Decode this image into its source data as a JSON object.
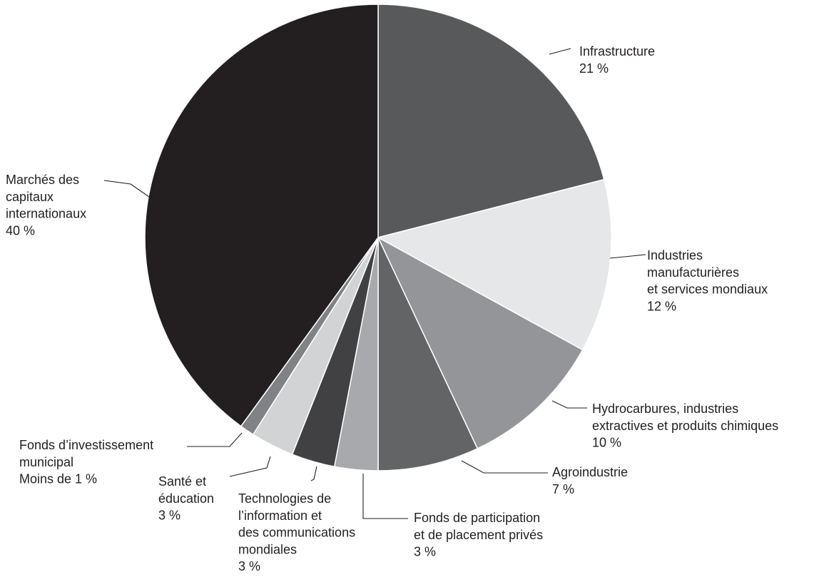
{
  "chart_data": {
    "type": "pie",
    "title": "",
    "slices": [
      {
        "label_lines": [
          "Infrastructure"
        ],
        "value": 21,
        "value_label": "21 %",
        "color": "#58595b"
      },
      {
        "label_lines": [
          "Industries",
          "manufacturières",
          "et services mondiaux"
        ],
        "value": 12,
        "value_label": "12 %",
        "color": "#e6e7e8"
      },
      {
        "label_lines": [
          "Hydrocarbures, industries",
          "extractives et produits chimiques"
        ],
        "value": 10,
        "value_label": "10 %",
        "color": "#939598"
      },
      {
        "label_lines": [
          "Agroindustrie"
        ],
        "value": 7,
        "value_label": "7 %",
        "color": "#636466"
      },
      {
        "label_lines": [
          "Fonds de participation",
          "et de placement privés"
        ],
        "value": 3,
        "value_label": "3 %",
        "color": "#a7a9ac"
      },
      {
        "label_lines": [
          "Technologies de",
          "l’information et",
          "des communications",
          "mondiales"
        ],
        "value": 3,
        "value_label": "3 %",
        "color": "#414042"
      },
      {
        "label_lines": [
          "Santé et",
          "éducation"
        ],
        "value": 3,
        "value_label": "3 %",
        "color": "#d1d3d4"
      },
      {
        "label_lines": [
          "Fonds d’investissement",
          "municipal"
        ],
        "value": 1,
        "value_label": "Moins de 1 %",
        "color": "#808285"
      },
      {
        "label_lines": [
          "Marchés des",
          "capitaux",
          "internationaux"
        ],
        "value": 40,
        "value_label": "40 %",
        "color": "#231f20"
      }
    ]
  }
}
